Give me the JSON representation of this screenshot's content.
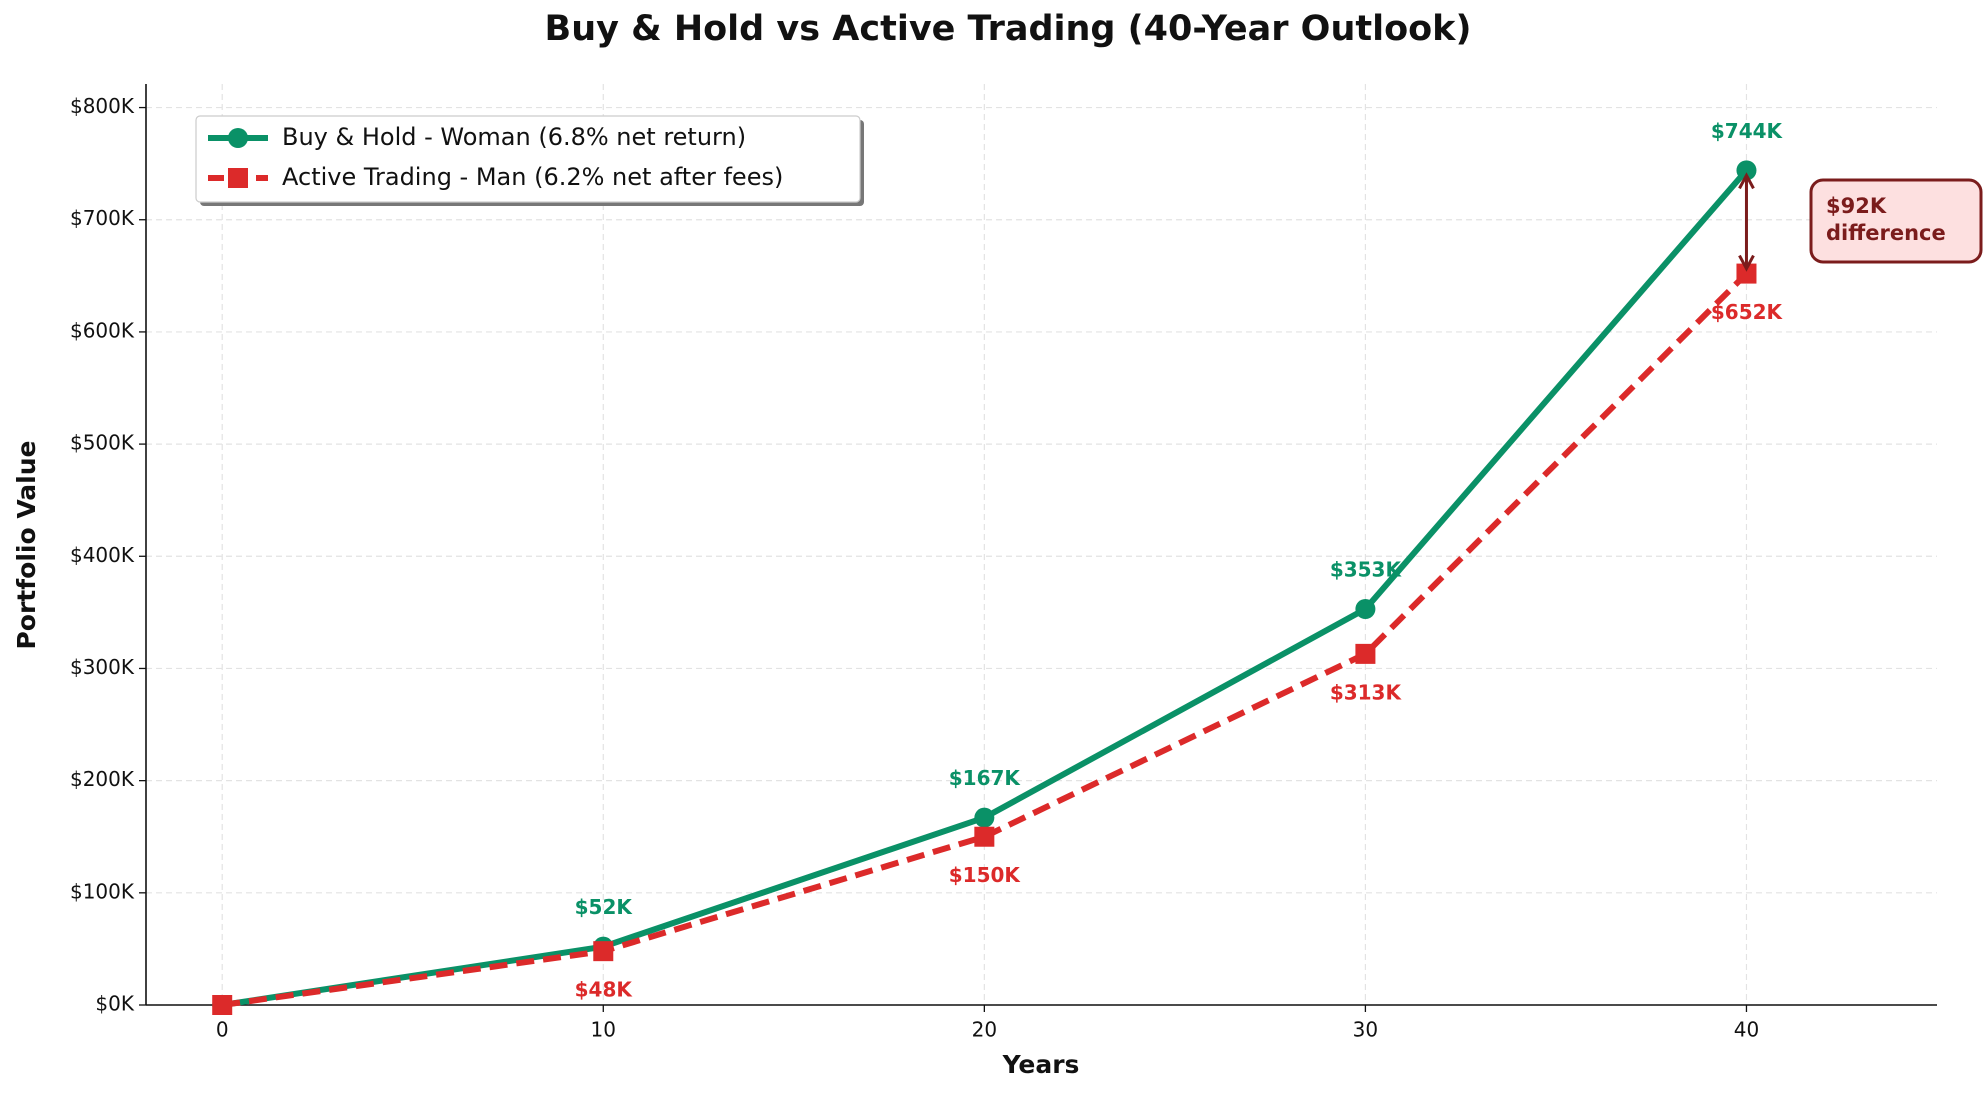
{
  "chart_data": {
    "type": "line",
    "title": "Buy & Hold vs Active Trading (40-Year Outlook)",
    "x_label": "Years",
    "y_label": "Portfolio Value",
    "x": [
      0,
      10,
      20,
      30,
      40
    ],
    "series": [
      {
        "name": "Buy & Hold - Woman (6.8% net return)",
        "color": "#0a9167",
        "marker": "circle",
        "dash": false,
        "values": [
          0,
          52000,
          167000,
          353000,
          744000
        ],
        "value_labels": [
          null,
          "$52K",
          "$167K",
          "$353K",
          "$744K"
        ]
      },
      {
        "name": "Active Trading - Man (6.2% net after fees)",
        "color": "#dc2a2a",
        "marker": "square",
        "dash": true,
        "values": [
          0,
          48000,
          150000,
          313000,
          652000
        ],
        "value_labels": [
          null,
          "$48K",
          "$150K",
          "$313K",
          "$652K"
        ]
      }
    ],
    "annotation": [
      "$92K",
      "difference"
    ],
    "annotation_color": "#7b1c1c",
    "xlim": [
      -2,
      45
    ],
    "xticks": [
      0,
      10,
      20,
      30,
      40
    ],
    "ylim": [
      0,
      821000
    ],
    "yticks": [
      {
        "value": 0,
        "label": "$0K"
      },
      {
        "value": 100000,
        "label": "$100K"
      },
      {
        "value": 200000,
        "label": "$200K"
      },
      {
        "value": 300000,
        "label": "$300K"
      },
      {
        "value": 400000,
        "label": "$400K"
      },
      {
        "value": 500000,
        "label": "$500K"
      },
      {
        "value": 600000,
        "label": "$600K"
      },
      {
        "value": 700000,
        "label": "$700K"
      },
      {
        "value": 800000,
        "label": "$800K"
      }
    ],
    "grid": true,
    "legend": "upper left"
  }
}
